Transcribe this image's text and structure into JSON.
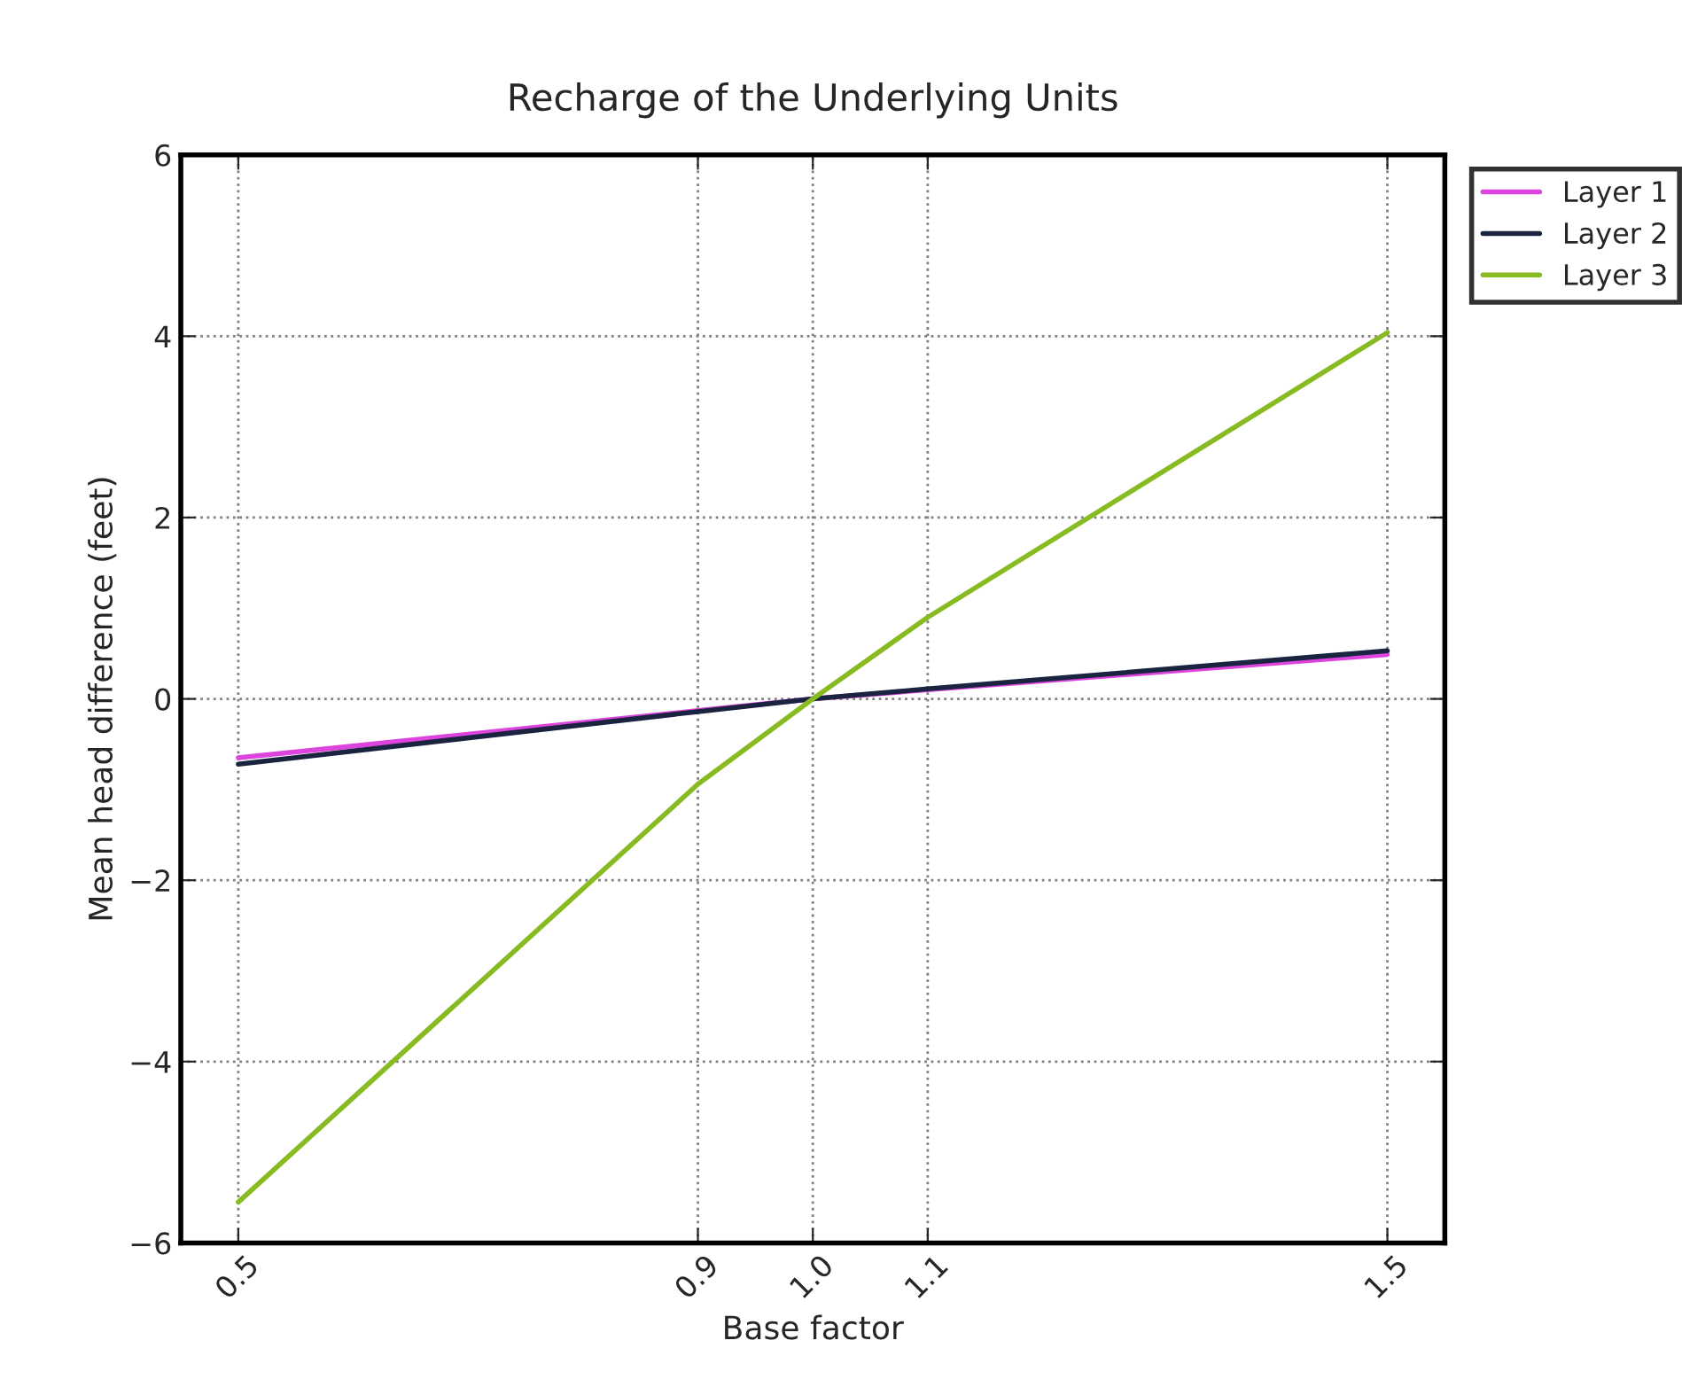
{
  "chart_data": {
    "type": "line",
    "title": "Recharge of the Underlying Units",
    "xlabel": "Base factor",
    "ylabel": "Mean head difference (feet)",
    "x": [
      0.5,
      0.9,
      1.0,
      1.1,
      1.5
    ],
    "series": [
      {
        "name": "Layer 1",
        "color": "#dd44dd",
        "values": [
          -0.65,
          -0.13,
          0.0,
          0.1,
          0.49
        ]
      },
      {
        "name": "Layer 2",
        "color": "#1a2340",
        "values": [
          -0.72,
          -0.14,
          0.0,
          0.11,
          0.53
        ]
      },
      {
        "name": "Layer 3",
        "color": "#88bb22",
        "values": [
          -5.55,
          -0.94,
          0.0,
          0.9,
          4.04
        ]
      }
    ],
    "xlim": [
      0.45,
      1.55
    ],
    "xticks": [
      0.5,
      0.9,
      {
        "value": 1,
        "label": "1.0"
      },
      1.1,
      1.5
    ],
    "ylim": [
      -6,
      6
    ],
    "yticks": [
      -6,
      -4,
      -2,
      0,
      2,
      4,
      6
    ],
    "grid": true,
    "legend": "top right",
    "line_style": "solid",
    "marker": "none"
  }
}
